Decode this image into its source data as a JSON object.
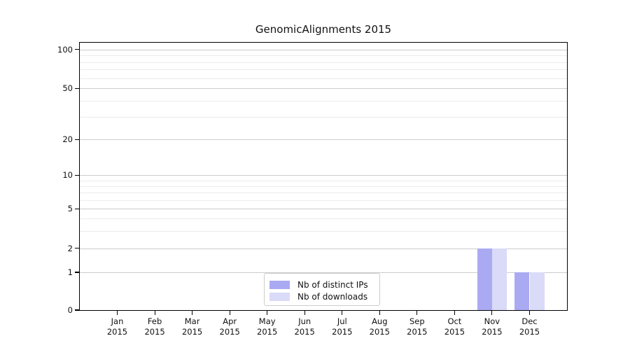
{
  "figure": {
    "background": "#ffffff"
  },
  "chart_data": {
    "type": "bar",
    "title": "GenomicAlignments 2015",
    "x_categories": [
      "Jan",
      "Feb",
      "Mar",
      "Apr",
      "May",
      "Jun",
      "Jul",
      "Aug",
      "Sep",
      "Oct",
      "Nov",
      "Dec"
    ],
    "x_year_label": "2015",
    "series": [
      {
        "name": "Nb of distinct IPs",
        "color": "#aaaaf2",
        "values": [
          0,
          0,
          0,
          0,
          0,
          0,
          0,
          0,
          0,
          0,
          2,
          1
        ]
      },
      {
        "name": "Nb of downloads",
        "color": "#dadaf9",
        "values": [
          0,
          0,
          0,
          0,
          0,
          0,
          0,
          0,
          0,
          0,
          2,
          1
        ]
      }
    ],
    "ytick_labels": [
      "0",
      "1",
      "2",
      "5",
      "10",
      "20",
      "50",
      "100"
    ],
    "ytick_values": [
      0,
      1,
      2,
      5,
      10,
      20,
      50,
      100
    ],
    "minor_grid_values": [
      3,
      4,
      6,
      7,
      8,
      9,
      30,
      40,
      60,
      70,
      80,
      90
    ],
    "ylim": [
      0,
      112
    ],
    "yscale": "log-like (linear 0-1, log above 1)",
    "grid": true,
    "legend_position": "lower center",
    "xlabel": "",
    "ylabel": ""
  },
  "colors": {
    "grid_major": "#cccccc",
    "grid_minor": "#ececec",
    "axis_frame": "#000000",
    "text": "#111111",
    "legend_border": "#cccccc"
  }
}
